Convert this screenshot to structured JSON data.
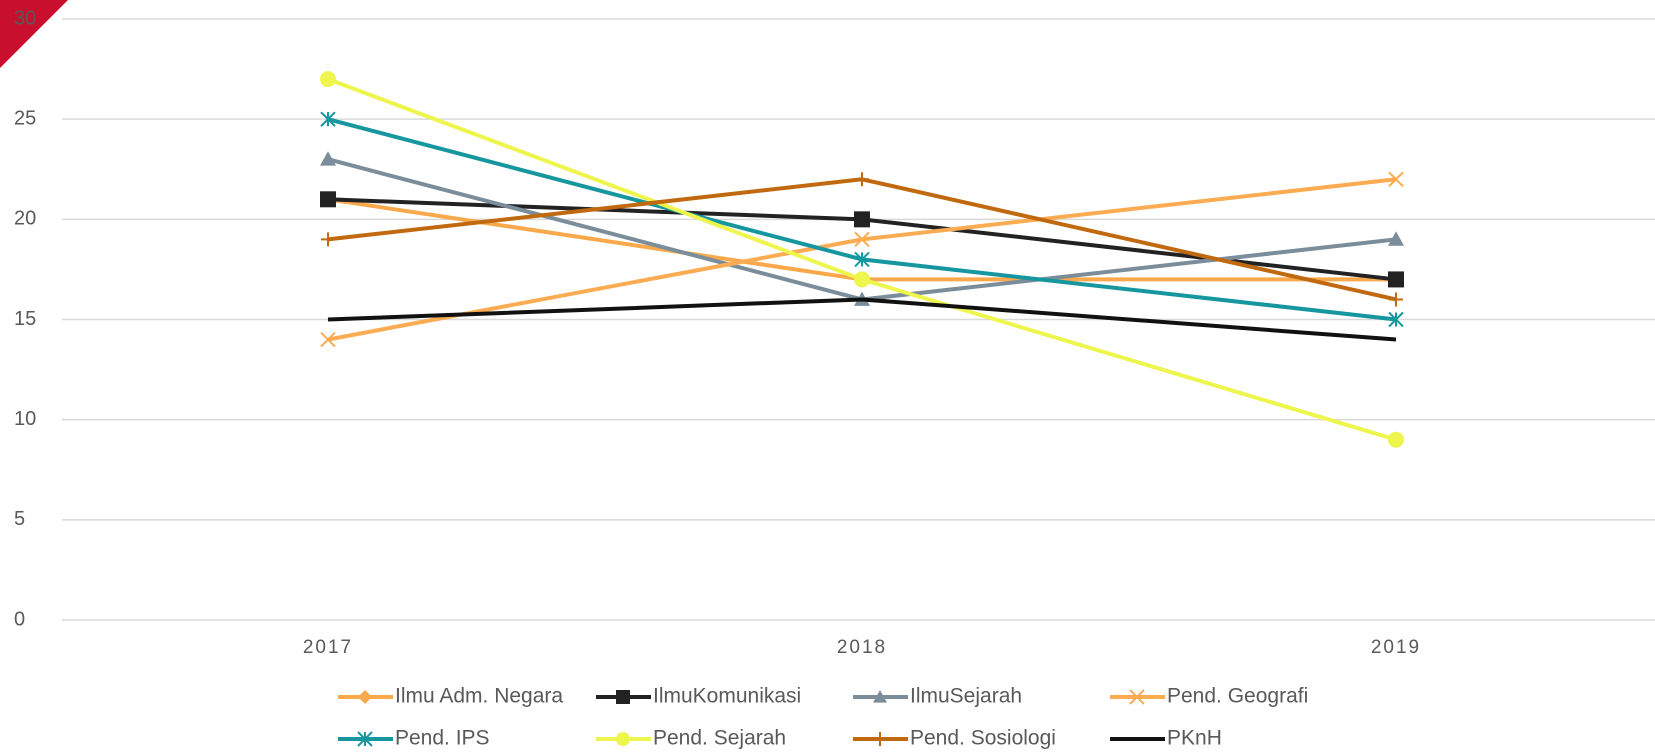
{
  "chart_data": {
    "type": "line",
    "categories": [
      "2017",
      "2018",
      "2019"
    ],
    "series": [
      {
        "name": "Ilmu Adm. Negara",
        "color": "#f9a94b",
        "marker": "diamond",
        "values": [
          21,
          17,
          17
        ]
      },
      {
        "name": "IlmuKomunikasi",
        "color": "#222222",
        "marker": "square",
        "values": [
          21,
          20,
          17
        ]
      },
      {
        "name": "IlmuSejarah",
        "color": "#7b8d9a",
        "marker": "triangle",
        "values": [
          23,
          16,
          19
        ]
      },
      {
        "name": "Pend. Geografi",
        "color": "#fbac52",
        "marker": "x",
        "values": [
          14,
          19,
          22
        ]
      },
      {
        "name": "Pend. IPS",
        "color": "#16969f",
        "marker": "asterisk",
        "values": [
          25,
          18,
          15
        ]
      },
      {
        "name": "Pend. Sejarah",
        "color": "#eef54c",
        "marker": "circle",
        "values": [
          27,
          17,
          9
        ]
      },
      {
        "name": "Pend. Sosiologi",
        "color": "#c0690f",
        "marker": "plus",
        "values": [
          19,
          22,
          16
        ]
      },
      {
        "name": "PKnH",
        "color": "#111111",
        "marker": "none",
        "values": [
          15,
          16,
          14
        ]
      }
    ],
    "ylim": [
      0,
      30
    ],
    "yticks": [
      0,
      5,
      10,
      15,
      20,
      25,
      30
    ],
    "grid": true,
    "legend": "bottom"
  }
}
